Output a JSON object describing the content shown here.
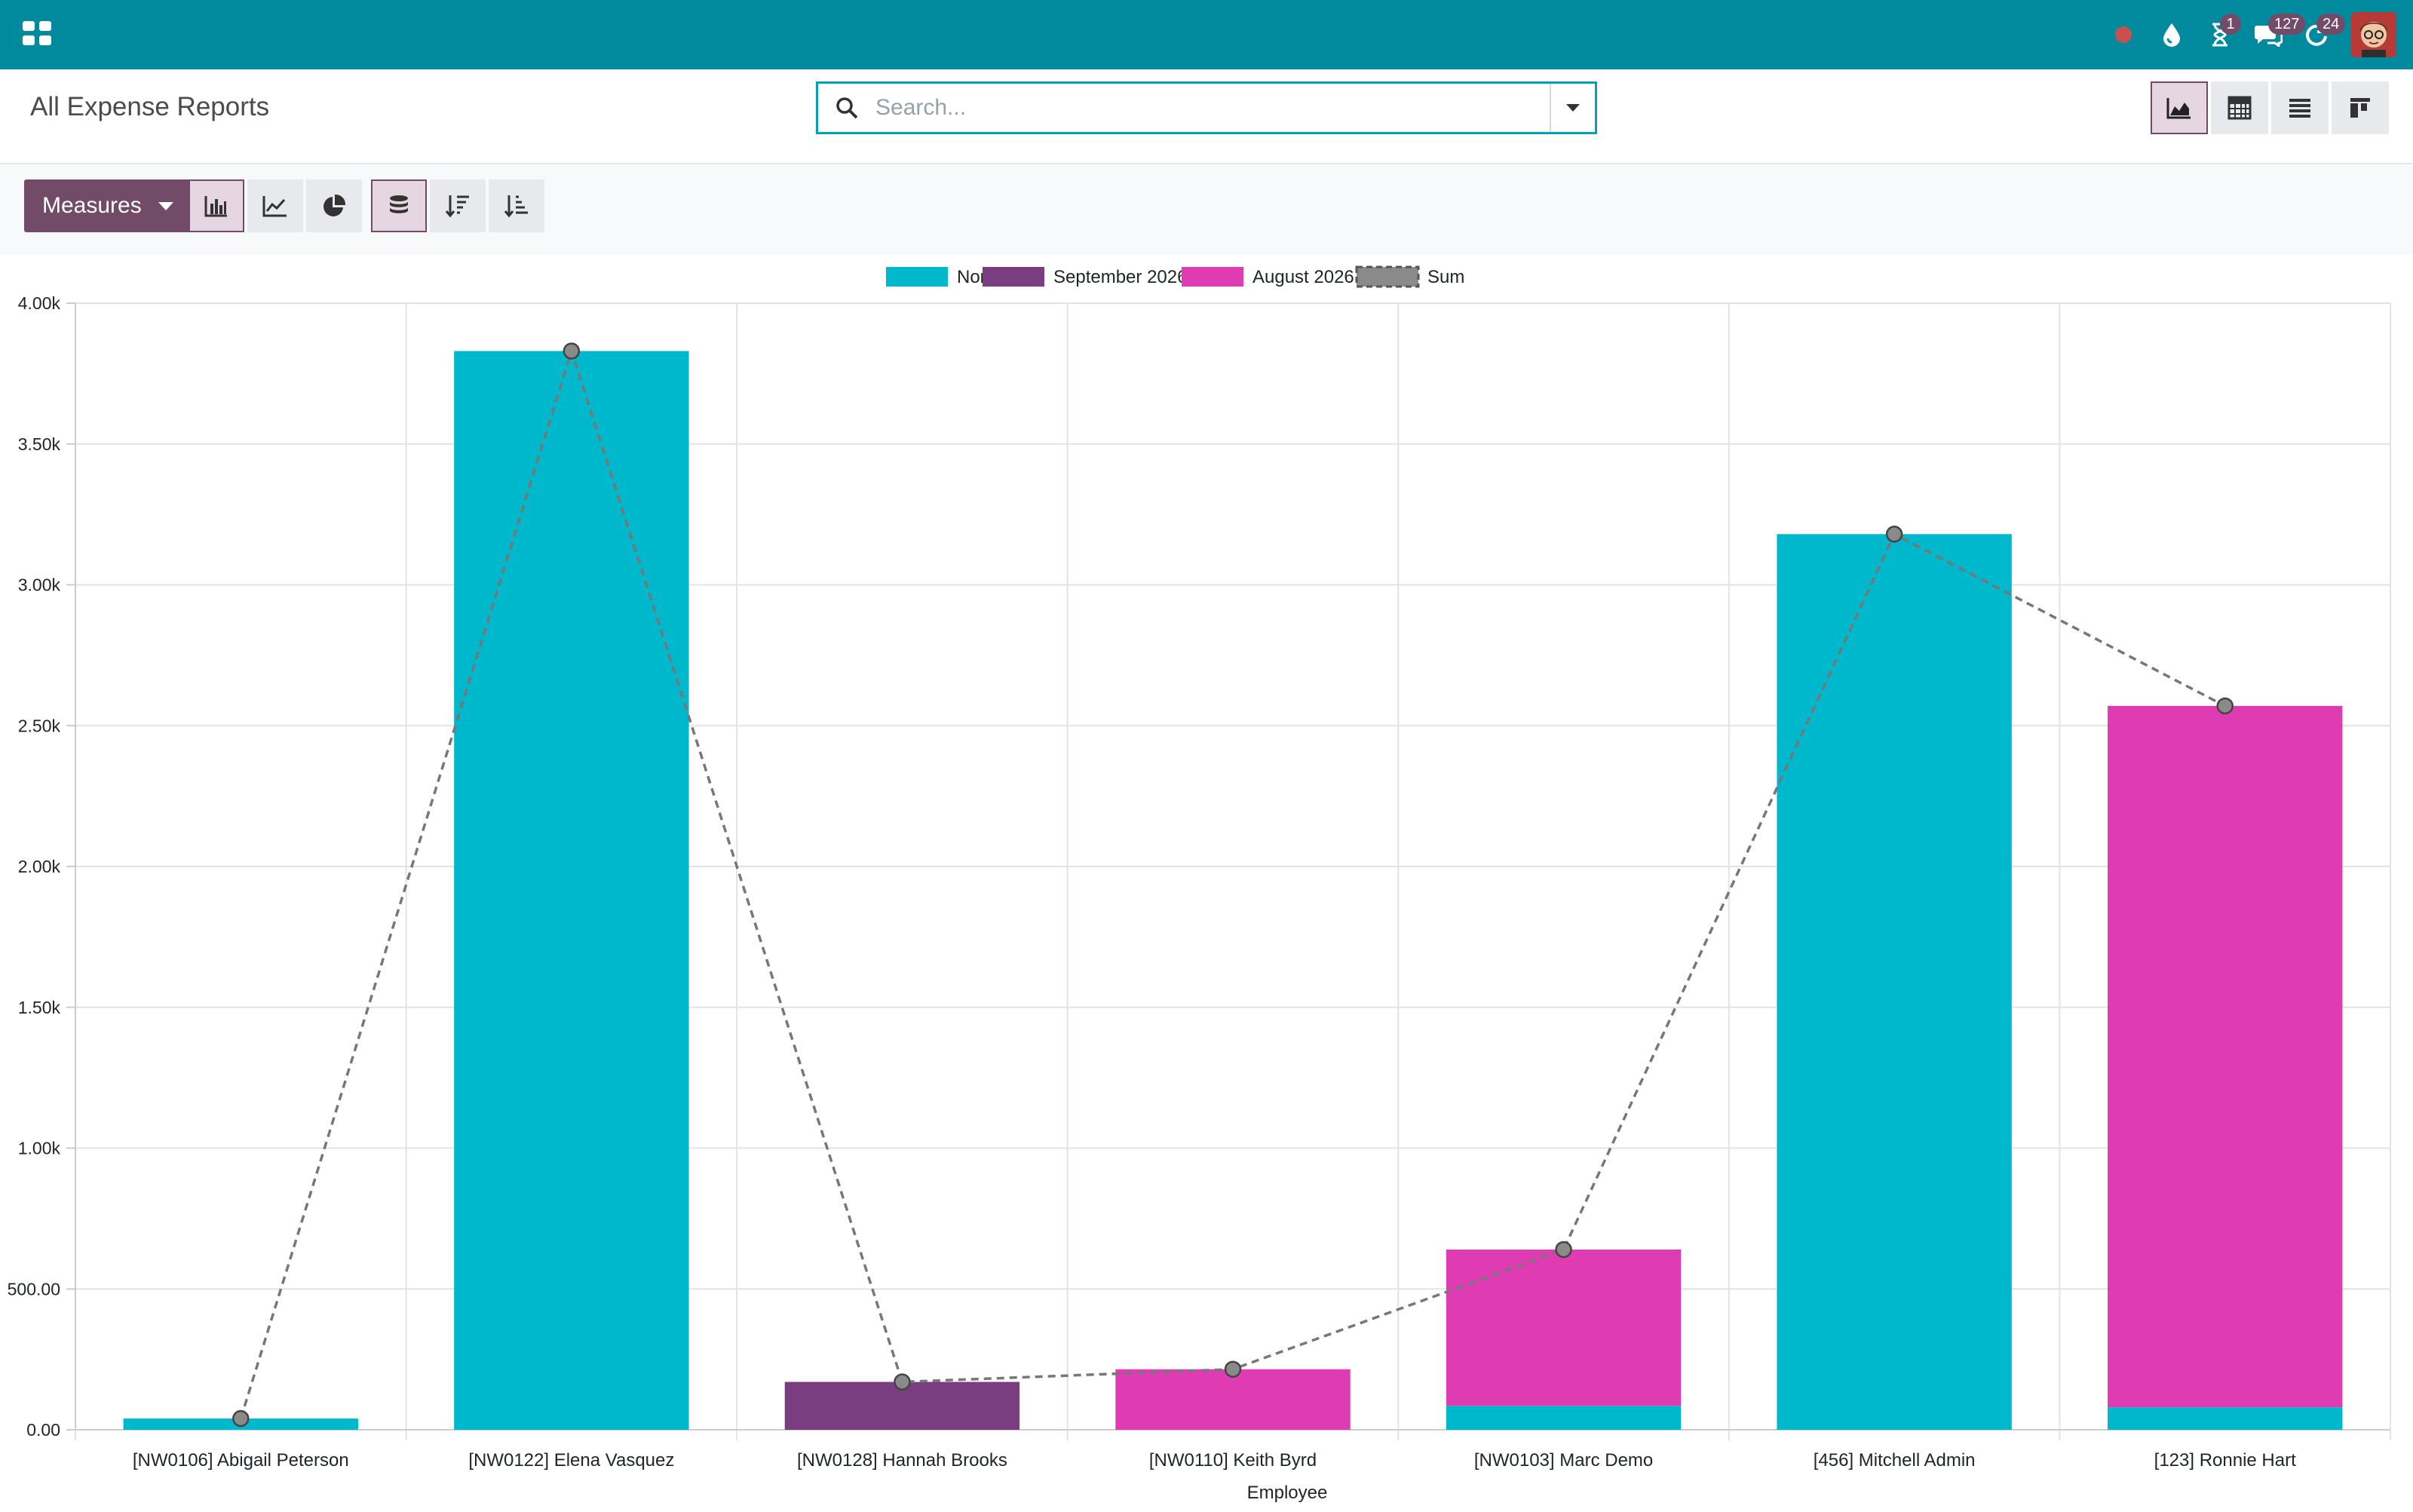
{
  "navbar": {
    "badges": {
      "activity": "1",
      "messages": "127",
      "updates": "24"
    }
  },
  "control_panel": {
    "breadcrumb": "All Expense Reports",
    "search_placeholder": "Search...",
    "measures_label": "Measures"
  },
  "colors": {
    "navbar": "#018a9e",
    "brand": "#714b67",
    "series_none": "#00b8cc",
    "series_sep": "#7a3d7f",
    "series_aug": "#df3cb4",
    "sum_line": "#777777"
  },
  "icons": {
    "navbar": [
      "apps-icon",
      "status-dot-icon",
      "water-drop-icon",
      "hourglass-icon",
      "chat-icon",
      "refresh-icon",
      "avatar"
    ],
    "views": [
      "graph-view-icon",
      "pivot-view-icon",
      "list-view-icon",
      "kanban-view-icon"
    ],
    "tools": [
      "bar-chart-icon",
      "line-chart-icon",
      "pie-chart-icon",
      "stacked-icon",
      "sort-descending-icon",
      "sort-ascending-icon"
    ]
  },
  "chart_data": {
    "type": "bar",
    "stacked": true,
    "categories": [
      "[NW0106] Abigail Peterson",
      "[NW0122] Elena Vasquez",
      "[NW0128] Hannah Brooks",
      "[NW0110] Keith Byrd",
      "[NW0103] Marc Demo",
      "[456] Mitchell Admin",
      "[123] Ronnie Hart"
    ],
    "series": [
      {
        "name": "None",
        "color": "#00b8cc",
        "values": [
          40,
          3830,
          0,
          0,
          85,
          3180,
          80
        ]
      },
      {
        "name": "September 2026",
        "color": "#7a3d7f",
        "values": [
          0,
          0,
          170,
          0,
          0,
          0,
          0
        ]
      },
      {
        "name": "August 2026",
        "color": "#df3cb4",
        "values": [
          0,
          0,
          0,
          215,
          555,
          0,
          2490
        ]
      }
    ],
    "sum_series": {
      "name": "Sum",
      "type": "line",
      "style": "dashed",
      "values": [
        40,
        3830,
        170,
        215,
        640,
        3180,
        2570
      ]
    },
    "ylim": [
      0,
      4000
    ],
    "yticks": [
      0,
      500,
      1000,
      1500,
      2000,
      2500,
      3000,
      3500,
      4000
    ],
    "ytick_labels": [
      "0.00",
      "500.00",
      "1.00k",
      "1.50k",
      "2.00k",
      "2.50k",
      "3.00k",
      "3.50k",
      "4.00k"
    ],
    "xlabel": "Employee",
    "legend_position": "top-center",
    "grid": true
  }
}
